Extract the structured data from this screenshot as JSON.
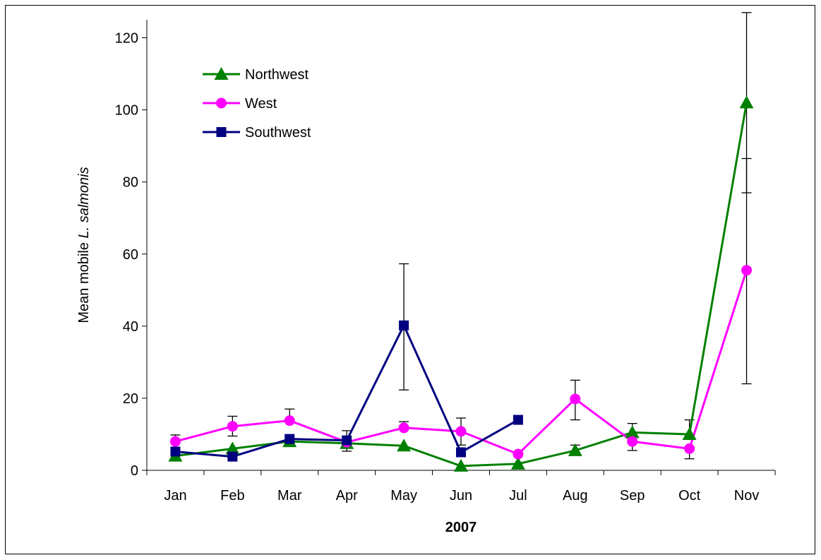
{
  "chart_data": {
    "type": "line",
    "title": "",
    "xlabel": "2007",
    "ylabel_parts": [
      "Mean mobile ",
      "L. salmonis"
    ],
    "ylim": [
      0,
      125
    ],
    "yticks": [
      0,
      20,
      40,
      60,
      80,
      100,
      120
    ],
    "ytick_labels": [
      "0",
      "20",
      "40",
      "60",
      "80",
      "100",
      "120"
    ],
    "categories": [
      "Jan",
      "Feb",
      "Mar",
      "Apr",
      "May",
      "Jun",
      "Jul",
      "Aug",
      "Sep",
      "Oct",
      "Nov"
    ],
    "grid": false,
    "legend_position": "top-left",
    "series": [
      {
        "name": "Northwest",
        "color": "#008000",
        "marker": "triangle",
        "values": [
          4,
          6,
          8,
          7.5,
          6.8,
          1.2,
          1.8,
          5.5,
          10.5,
          10,
          102
        ],
        "err_upper": [
          null,
          null,
          null,
          null,
          null,
          null,
          null,
          7,
          13,
          14,
          127
        ],
        "err_lower": [
          null,
          null,
          null,
          null,
          null,
          null,
          null,
          null,
          null,
          null,
          77
        ]
      },
      {
        "name": "West",
        "color": "#ff00ff",
        "marker": "circle",
        "values": [
          8,
          12.2,
          13.8,
          7.8,
          11.8,
          10.8,
          4.5,
          19.8,
          8,
          6,
          55.5
        ],
        "err_upper": [
          9.8,
          15,
          17,
          11,
          13.5,
          14.5,
          null,
          25,
          null,
          null,
          86.5
        ],
        "err_lower": [
          null,
          9.5,
          null,
          null,
          null,
          7,
          null,
          14,
          5.5,
          3.2,
          24
        ]
      },
      {
        "name": "Southwest",
        "color": "#000080",
        "marker": "square",
        "values": [
          5.2,
          3.8,
          8.7,
          8.3,
          40.2,
          5,
          14,
          null,
          null,
          null,
          null
        ],
        "err_upper": [
          null,
          null,
          null,
          null,
          57.3,
          null,
          null,
          null,
          null,
          null,
          null
        ],
        "err_lower": [
          null,
          null,
          null,
          5.3,
          22.3,
          null,
          null,
          null,
          null,
          null,
          null
        ]
      }
    ]
  }
}
